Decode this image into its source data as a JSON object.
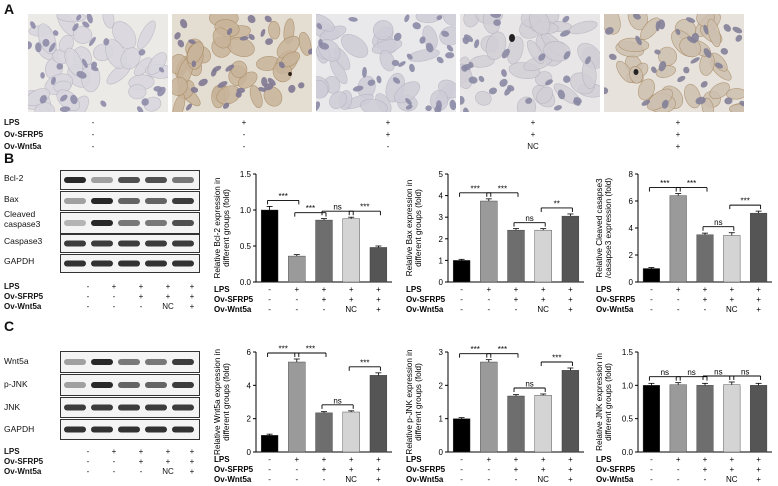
{
  "panels": {
    "A": "A",
    "B": "B",
    "C": "C"
  },
  "conditions": {
    "row_labels": [
      "LPS",
      "Ov-SFRP5",
      "Ov-Wnt5a"
    ],
    "image_columns": [
      [
        "-",
        "-",
        "-"
      ],
      [
        "+",
        "-",
        "-"
      ],
      [
        "+",
        "+",
        "-"
      ],
      [
        "+",
        "+",
        "NC"
      ],
      [
        "+",
        "+",
        "+"
      ]
    ]
  },
  "blots_B": {
    "labels": [
      "Bcl-2",
      "Bax",
      "Cleaved caspase3",
      "Caspase3",
      "GAPDH"
    ]
  },
  "blots_C": {
    "labels": [
      "Wnt5a",
      "p-JNK",
      "JNK",
      "GAPDH"
    ]
  },
  "lane_table": {
    "row_labels": [
      "LPS",
      "Ov-SFRP5",
      "Ov-Wnt5a"
    ],
    "columns": [
      [
        "-",
        "-",
        "-"
      ],
      [
        "+",
        "-",
        "-"
      ],
      [
        "+",
        "+",
        "-"
      ],
      [
        "+",
        "+",
        "NC"
      ],
      [
        "+",
        "+",
        "+"
      ]
    ]
  },
  "bar_colors": [
    "#000000",
    "#9a9a9a",
    "#6e6e6e",
    "#d4d4d4",
    "#555555"
  ],
  "chart_data": [
    {
      "type": "bar",
      "id": "bcl2",
      "ylabel_lines": [
        "Relative Bcl-2 expression in",
        "different groups (fold)"
      ],
      "ylim": [
        0,
        1.5
      ],
      "yticks": [
        "0.0",
        "0.5",
        "1.0",
        "1.5"
      ],
      "values": [
        1.0,
        0.36,
        0.86,
        0.88,
        0.48
      ],
      "errors": [
        0.05,
        0.02,
        0.02,
        0.02,
        0.02
      ],
      "brackets": [
        {
          "from": 0,
          "to": 1,
          "label": "***"
        },
        {
          "from": 1,
          "to": 2,
          "label": "***"
        },
        {
          "from": 2,
          "to": 3,
          "label": "ns"
        },
        {
          "from": 3,
          "to": 4,
          "label": "***"
        }
      ]
    },
    {
      "type": "bar",
      "id": "bax",
      "ylabel_lines": [
        "Relative Bax expression in",
        "different groups (fold)"
      ],
      "ylim": [
        0,
        5
      ],
      "yticks": [
        "0",
        "1",
        "2",
        "3",
        "4",
        "5"
      ],
      "values": [
        1.0,
        3.75,
        2.4,
        2.4,
        3.05
      ],
      "errors": [
        0.05,
        0.1,
        0.07,
        0.07,
        0.1
      ],
      "brackets": [
        {
          "from": 0,
          "to": 1,
          "label": "***"
        },
        {
          "from": 1,
          "to": 2,
          "label": "***"
        },
        {
          "from": 2,
          "to": 3,
          "label": "ns"
        },
        {
          "from": 3,
          "to": 4,
          "label": "**"
        }
      ]
    },
    {
      "type": "bar",
      "id": "cleaved",
      "ylabel_lines": [
        "Relative Cleaved casapse3",
        "/casapse3 expression (fold)"
      ],
      "ylim": [
        0,
        8
      ],
      "yticks": [
        "0",
        "2",
        "4",
        "6",
        "8"
      ],
      "values": [
        1.0,
        6.4,
        3.5,
        3.45,
        5.1
      ],
      "errors": [
        0.07,
        0.15,
        0.12,
        0.2,
        0.15
      ],
      "brackets": [
        {
          "from": 0,
          "to": 1,
          "label": "***"
        },
        {
          "from": 1,
          "to": 2,
          "label": "***"
        },
        {
          "from": 2,
          "to": 3,
          "label": "ns"
        },
        {
          "from": 3,
          "to": 4,
          "label": "***"
        }
      ]
    },
    {
      "type": "bar",
      "id": "wnt5a",
      "ylabel_lines": [
        "Relative Wnt5a expression in",
        "different groups (fold)"
      ],
      "ylim": [
        0,
        6
      ],
      "yticks": [
        "0",
        "2",
        "4",
        "6"
      ],
      "values": [
        1.0,
        5.4,
        2.35,
        2.4,
        4.6
      ],
      "errors": [
        0.07,
        0.18,
        0.07,
        0.07,
        0.15
      ],
      "brackets": [
        {
          "from": 0,
          "to": 1,
          "label": "***"
        },
        {
          "from": 1,
          "to": 2,
          "label": "***"
        },
        {
          "from": 2,
          "to": 3,
          "label": "ns"
        },
        {
          "from": 3,
          "to": 4,
          "label": "***"
        }
      ]
    },
    {
      "type": "bar",
      "id": "pjnk",
      "ylabel_lines": [
        "Relative p-JNK expression in",
        "different groups (fold)"
      ],
      "ylim": [
        0,
        3
      ],
      "yticks": [
        "0",
        "1",
        "2",
        "3"
      ],
      "values": [
        1.0,
        2.7,
        1.68,
        1.7,
        2.45
      ],
      "errors": [
        0.03,
        0.07,
        0.04,
        0.04,
        0.07
      ],
      "brackets": [
        {
          "from": 0,
          "to": 1,
          "label": "***"
        },
        {
          "from": 1,
          "to": 2,
          "label": "***"
        },
        {
          "from": 2,
          "to": 3,
          "label": "ns"
        },
        {
          "from": 3,
          "to": 4,
          "label": "***"
        }
      ]
    },
    {
      "type": "bar",
      "id": "jnk",
      "ylabel_lines": [
        "Relative JNK expression in",
        "different groups (fold)"
      ],
      "ylim": [
        0,
        1.5
      ],
      "yticks": [
        "0.0",
        "0.5",
        "1.0",
        "1.5"
      ],
      "values": [
        1.0,
        1.01,
        1.0,
        1.01,
        1.0
      ],
      "errors": [
        0.03,
        0.03,
        0.03,
        0.04,
        0.03
      ],
      "brackets": [
        {
          "from": 0,
          "to": 1,
          "label": "ns"
        },
        {
          "from": 1,
          "to": 2,
          "label": "ns"
        },
        {
          "from": 2,
          "to": 3,
          "label": "ns"
        },
        {
          "from": 3,
          "to": 4,
          "label": "ns"
        }
      ]
    }
  ]
}
